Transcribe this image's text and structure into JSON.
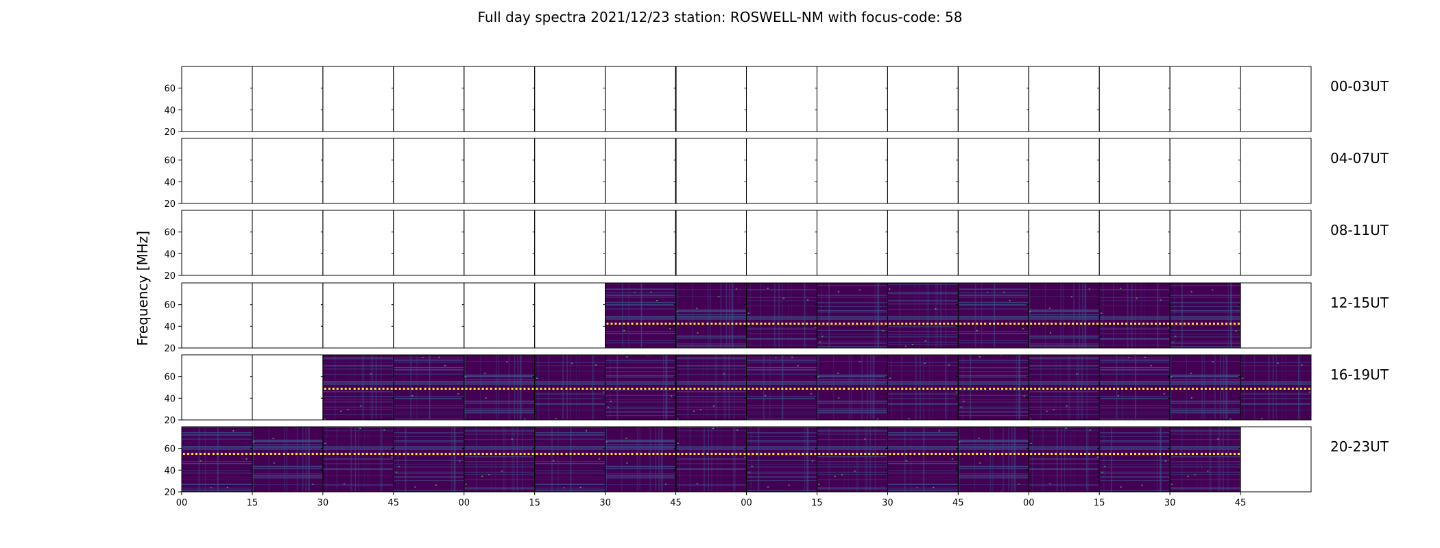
{
  "chart_data": {
    "type": "heatmap",
    "title": "Full day spectra 2021/12/23 station: ROSWELL-NM with focus-code: 58",
    "ylabel": "Frequency [MHz]",
    "y_ticks": [
      "20",
      "40",
      "60"
    ],
    "ylim": [
      20,
      80
    ],
    "x_ticks": [
      "00",
      "15",
      "30",
      "45",
      "00",
      "15",
      "30",
      "45",
      "00",
      "15",
      "30",
      "45",
      "00",
      "15",
      "30",
      "45"
    ],
    "colormap": [
      "#440154",
      "#3b528b",
      "#21918c",
      "#5ec962",
      "#fde725"
    ],
    "rows": [
      {
        "label": "00-03UT",
        "data_panels": []
      },
      {
        "label": "04-07UT",
        "data_panels": []
      },
      {
        "label": "08-11UT",
        "data_panels": []
      },
      {
        "label": "12-15UT",
        "data_panels": [
          6,
          7,
          8,
          9,
          10,
          11,
          12,
          13,
          14
        ]
      },
      {
        "label": "16-19UT",
        "data_panels": [
          2,
          3,
          4,
          5,
          6,
          7,
          8,
          9,
          10,
          11,
          12,
          13,
          14,
          15
        ]
      },
      {
        "label": "20-23UT",
        "data_panels": [
          0,
          1,
          2,
          3,
          4,
          5,
          6,
          7,
          8,
          9,
          10,
          11,
          12,
          13,
          14
        ]
      }
    ]
  }
}
